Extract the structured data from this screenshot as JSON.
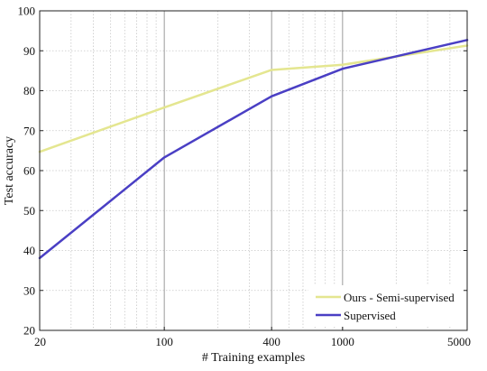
{
  "chart_data": {
    "type": "line",
    "title": "",
    "xlabel": "# Training examples",
    "ylabel": "Test accuracy",
    "x_scale": "log",
    "xlim": [
      20,
      5000
    ],
    "ylim": [
      20,
      100
    ],
    "x_ticks": [
      20,
      100,
      400,
      1000,
      5000
    ],
    "x_tick_labels": [
      "20",
      "100",
      "400",
      "1000",
      "5000"
    ],
    "y_ticks": [
      20,
      30,
      40,
      50,
      60,
      70,
      80,
      90,
      100
    ],
    "y_tick_labels": [
      "20",
      "30",
      "40",
      "50",
      "60",
      "70",
      "80",
      "90",
      "100"
    ],
    "grid": true,
    "legend_position": "bottom-right",
    "series": [
      {
        "name": "Ours - Semi-supervised",
        "color": "#e4e690",
        "x": [
          20,
          100,
          400,
          1000,
          5000
        ],
        "values": [
          64.7,
          75.8,
          85.2,
          86.5,
          91.3
        ]
      },
      {
        "name": "Supervised",
        "color": "#4a3fc4",
        "x": [
          20,
          100,
          400,
          1000,
          5000
        ],
        "values": [
          38.1,
          63.3,
          78.6,
          85.5,
          92.7
        ]
      }
    ]
  }
}
